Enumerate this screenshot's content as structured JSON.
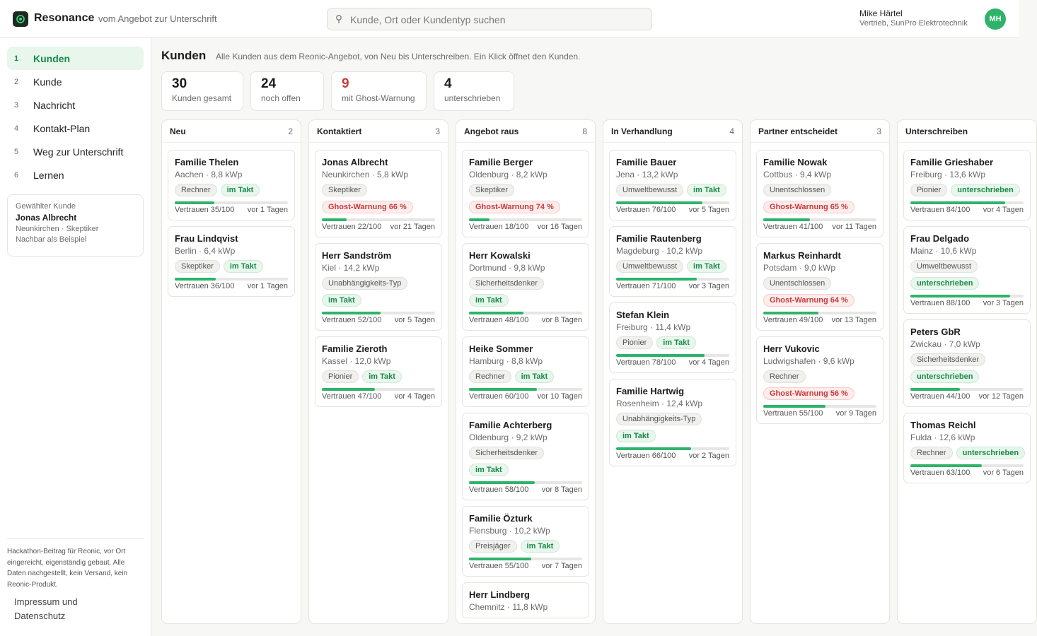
{
  "header": {
    "brand": "Resonance",
    "tagline": "vom Angebot zur Unterschrift",
    "search_placeholder": "Kunde, Ort oder Kundentyp suchen",
    "user_name": "Mike Härtel",
    "user_role": "Vertrieb, SunPro Elektrotechnik",
    "avatar_initials": "MH"
  },
  "sidebar": {
    "items": [
      {
        "num": "1",
        "label": "Kunden",
        "active": true
      },
      {
        "num": "2",
        "label": "Kunde"
      },
      {
        "num": "3",
        "label": "Nachricht"
      },
      {
        "num": "4",
        "label": "Kontakt-Plan"
      },
      {
        "num": "5",
        "label": "Weg zur Unterschrift"
      },
      {
        "num": "6",
        "label": "Lernen"
      }
    ],
    "selected": {
      "heading": "Gewählter Kunde",
      "name": "Jonas Albrecht",
      "meta": "Neunkirchen · Skeptiker",
      "note": "Nachbar als Beispiel"
    },
    "footnote": "Hackathon-Beitrag für Reonic, vor Ort eingereicht, eigenständig gebaut. Alle Daten nachgestellt, kein Versand, kein Reonic-Produkt.",
    "legal": "Impressum und Datenschutz"
  },
  "page": {
    "title": "Kunden",
    "subtitle": "Alle Kunden aus dem Reonic-Angebot, von Neu bis Unterschreiben. Ein Klick öffnet den Kunden."
  },
  "stats": [
    {
      "value": "30",
      "label": "Kunden gesamt"
    },
    {
      "value": "24",
      "label": "noch offen"
    },
    {
      "value": "9",
      "label": "mit Ghost-Warnung",
      "alert": true
    },
    {
      "value": "4",
      "label": "unterschrieben"
    }
  ],
  "colors": {
    "accent": "#2fb36a",
    "alert": "#c83a3a"
  },
  "columns": [
    {
      "title": "Neu",
      "count": "2",
      "cards": [
        {
          "name": "Familie Thelen",
          "meta": "Aachen · 8,8 kWp",
          "tags": [
            {
              "t": "Rechner",
              "k": "type"
            },
            {
              "t": "im Takt",
              "k": "takt"
            }
          ],
          "trust": 35,
          "trust_label": "Vertrauen 35/100",
          "age": "vor 1 Tagen"
        },
        {
          "name": "Frau Lindqvist",
          "meta": "Berlin · 6,4 kWp",
          "tags": [
            {
              "t": "Skeptiker",
              "k": "type"
            },
            {
              "t": "im Takt",
              "k": "takt"
            }
          ],
          "trust": 36,
          "trust_label": "Vertrauen 36/100",
          "age": "vor 1 Tagen"
        }
      ]
    },
    {
      "title": "Kontaktiert",
      "count": "3",
      "cards": [
        {
          "name": "Jonas Albrecht",
          "meta": "Neunkirchen · 5,8 kWp",
          "tags": [
            {
              "t": "Skeptiker",
              "k": "type"
            }
          ],
          "tags2": [
            {
              "t": "Ghost-Warnung 66 %",
              "k": "ghost"
            }
          ],
          "trust": 22,
          "trust_label": "Vertrauen 22/100",
          "age": "vor 21 Tagen"
        },
        {
          "name": "Herr Sandström",
          "meta": "Kiel · 14,2 kWp",
          "tags": [
            {
              "t": "Unabhängigkeits-Typ",
              "k": "type"
            }
          ],
          "tags2": [
            {
              "t": "im Takt",
              "k": "takt"
            }
          ],
          "trust": 52,
          "trust_label": "Vertrauen 52/100",
          "age": "vor 5 Tagen"
        },
        {
          "name": "Familie Zieroth",
          "meta": "Kassel · 12,0 kWp",
          "tags": [
            {
              "t": "Pionier",
              "k": "type"
            },
            {
              "t": "im Takt",
              "k": "takt"
            }
          ],
          "trust": 47,
          "trust_label": "Vertrauen 47/100",
          "age": "vor 4 Tagen"
        }
      ]
    },
    {
      "title": "Angebot raus",
      "count": "8",
      "cards": [
        {
          "name": "Familie Berger",
          "meta": "Oldenburg · 8,2 kWp",
          "tags": [
            {
              "t": "Skeptiker",
              "k": "type"
            }
          ],
          "tags2": [
            {
              "t": "Ghost-Warnung 74 %",
              "k": "ghost"
            }
          ],
          "trust": 18,
          "trust_label": "Vertrauen 18/100",
          "age": "vor 16 Tagen"
        },
        {
          "name": "Herr Kowalski",
          "meta": "Dortmund · 9,8 kWp",
          "tags": [
            {
              "t": "Sicherheitsdenker",
              "k": "type"
            }
          ],
          "tags2": [
            {
              "t": "im Takt",
              "k": "takt"
            }
          ],
          "trust": 48,
          "trust_label": "Vertrauen 48/100",
          "age": "vor 8 Tagen"
        },
        {
          "name": "Heike Sommer",
          "meta": "Hamburg · 8,8 kWp",
          "tags": [
            {
              "t": "Rechner",
              "k": "type"
            },
            {
              "t": "im Takt",
              "k": "takt"
            }
          ],
          "trust": 60,
          "trust_label": "Vertrauen 60/100",
          "age": "vor 10 Tagen"
        },
        {
          "name": "Familie Achterberg",
          "meta": "Oldenburg · 9,2 kWp",
          "tags": [
            {
              "t": "Sicherheitsdenker",
              "k": "type"
            }
          ],
          "tags2": [
            {
              "t": "im Takt",
              "k": "takt"
            }
          ],
          "trust": 58,
          "trust_label": "Vertrauen 58/100",
          "age": "vor 8 Tagen"
        },
        {
          "name": "Familie Özturk",
          "meta": "Flensburg · 10,2 kWp",
          "tags": [
            {
              "t": "Preisjäger",
              "k": "type"
            },
            {
              "t": "im Takt",
              "k": "takt"
            }
          ],
          "trust": 55,
          "trust_label": "Vertrauen 55/100",
          "age": "vor 7 Tagen"
        },
        {
          "name": "Herr Lindberg",
          "meta": "Chemnitz · 11,8 kWp",
          "tags": [],
          "trust": null,
          "trust_label": "",
          "age": ""
        }
      ]
    },
    {
      "title": "In Verhandlung",
      "count": "4",
      "cards": [
        {
          "name": "Familie Bauer",
          "meta": "Jena · 13,2 kWp",
          "tags": [
            {
              "t": "Umweltbewusst",
              "k": "type"
            },
            {
              "t": "im Takt",
              "k": "takt"
            }
          ],
          "trust": 76,
          "trust_label": "Vertrauen 76/100",
          "age": "vor 5 Tagen"
        },
        {
          "name": "Familie Rautenberg",
          "meta": "Magdeburg · 10,2 kWp",
          "tags": [
            {
              "t": "Umweltbewusst",
              "k": "type"
            },
            {
              "t": "im Takt",
              "k": "takt"
            }
          ],
          "trust": 71,
          "trust_label": "Vertrauen 71/100",
          "age": "vor 3 Tagen"
        },
        {
          "name": "Stefan Klein",
          "meta": "Freiburg · 11,4 kWp",
          "tags": [
            {
              "t": "Pionier",
              "k": "type"
            },
            {
              "t": "im Takt",
              "k": "takt"
            }
          ],
          "trust": 78,
          "trust_label": "Vertrauen 78/100",
          "age": "vor 4 Tagen"
        },
        {
          "name": "Familie Hartwig",
          "meta": "Rosenheim · 12,4 kWp",
          "tags": [
            {
              "t": "Unabhängigkeits-Typ",
              "k": "type"
            }
          ],
          "tags2": [
            {
              "t": "im Takt",
              "k": "takt"
            }
          ],
          "trust": 66,
          "trust_label": "Vertrauen 66/100",
          "age": "vor 2 Tagen"
        }
      ]
    },
    {
      "title": "Partner entscheidet",
      "count": "3",
      "cards": [
        {
          "name": "Familie Nowak",
          "meta": "Cottbus · 9,4 kWp",
          "tags": [
            {
              "t": "Unentschlossen",
              "k": "type"
            }
          ],
          "tags2": [
            {
              "t": "Ghost-Warnung 65 %",
              "k": "ghost"
            }
          ],
          "trust": 41,
          "trust_label": "Vertrauen 41/100",
          "age": "vor 11 Tagen"
        },
        {
          "name": "Markus Reinhardt",
          "meta": "Potsdam · 9,0 kWp",
          "tags": [
            {
              "t": "Unentschlossen",
              "k": "type"
            }
          ],
          "tags2": [
            {
              "t": "Ghost-Warnung 64 %",
              "k": "ghost"
            }
          ],
          "trust": 49,
          "trust_label": "Vertrauen 49/100",
          "age": "vor 13 Tagen"
        },
        {
          "name": "Herr Vukovic",
          "meta": "Ludwigshafen · 9,6 kWp",
          "tags": [
            {
              "t": "Rechner",
              "k": "type"
            }
          ],
          "tags2": [
            {
              "t": "Ghost-Warnung 56 %",
              "k": "ghost"
            }
          ],
          "trust": 55,
          "trust_label": "Vertrauen 55/100",
          "age": "vor 9 Tagen"
        }
      ]
    },
    {
      "title": "Unterschreiben",
      "count": "",
      "cards": [
        {
          "name": "Familie Grieshaber",
          "meta": "Freiburg · 13,6 kWp",
          "tags": [
            {
              "t": "Pionier",
              "k": "type"
            },
            {
              "t": "unterschrieben",
              "k": "sign"
            }
          ],
          "trust": 84,
          "trust_label": "Vertrauen 84/100",
          "age": "vor 4 Tagen"
        },
        {
          "name": "Frau Delgado",
          "meta": "Mainz · 10,6 kWp",
          "tags": [
            {
              "t": "Umweltbewusst",
              "k": "type"
            }
          ],
          "tags2": [
            {
              "t": "unterschrieben",
              "k": "sign"
            }
          ],
          "trust": 88,
          "trust_label": "Vertrauen 88/100",
          "age": "vor 3 Tagen"
        },
        {
          "name": "Peters GbR",
          "meta": "Zwickau · 7,0 kWp",
          "tags": [
            {
              "t": "Sicherheitsdenker",
              "k": "type"
            }
          ],
          "tags2": [
            {
              "t": "unterschrieben",
              "k": "sign"
            }
          ],
          "trust": 44,
          "trust_label": "Vertrauen 44/100",
          "age": "vor 12 Tagen"
        },
        {
          "name": "Thomas Reichl",
          "meta": "Fulda · 12,6 kWp",
          "tags": [
            {
              "t": "Rechner",
              "k": "type"
            },
            {
              "t": "unterschrieben",
              "k": "sign"
            }
          ],
          "trust": 63,
          "trust_label": "Vertrauen 63/100",
          "age": "vor 6 Tagen"
        }
      ]
    }
  ]
}
